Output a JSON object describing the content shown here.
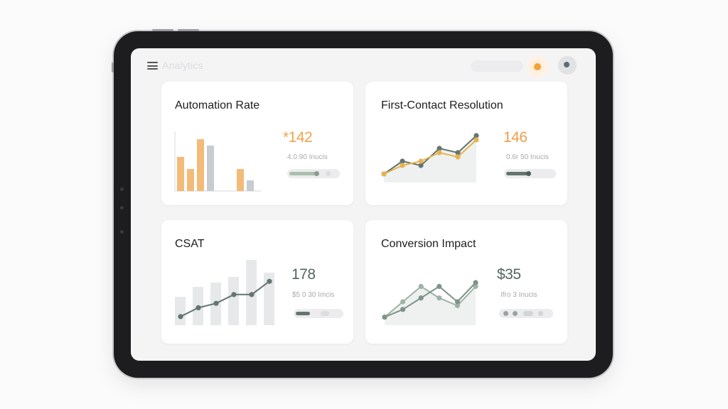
{
  "header": {
    "app_title": "Analytics"
  },
  "colors": {
    "orange": "#f0a44b",
    "gray": "#c8cbcf",
    "slate": "#64756f",
    "sage": "#9fb3a6"
  },
  "cards": [
    {
      "title": "Automation Rate",
      "metric": "*142",
      "metric_color": "#f0a44b",
      "sub": "4.0.90 Inucis"
    },
    {
      "title": "First-Contact Resolution",
      "metric": "146",
      "metric_color": "#ee9f4a",
      "sub": "0.6r 50 Inucis"
    },
    {
      "title": "CSAT",
      "metric": "178",
      "metric_color": "#54665f",
      "sub": "$5 0 30 Imcis"
    },
    {
      "title": "Conversion Impact",
      "metric": "$35",
      "metric_color": "#54665f",
      "sub": "Ifro 3 Inucis"
    }
  ],
  "chart_data": [
    {
      "type": "bar",
      "categories": [
        "1",
        "2",
        "3",
        "4",
        "5",
        "6",
        "7",
        "8"
      ],
      "series": [
        {
          "values": [
            48,
            31,
            73,
            0,
            0,
            0,
            31,
            0
          ]
        },
        {
          "values": [
            0,
            0,
            0,
            64,
            0,
            0,
            0,
            15
          ]
        }
      ]
    },
    {
      "type": "line",
      "x": [
        1,
        2,
        3,
        4,
        5,
        6
      ],
      "series": [
        {
          "values": [
            1,
            4,
            3,
            7,
            6,
            10
          ]
        },
        {
          "values": [
            1,
            3,
            4,
            6,
            5,
            9
          ]
        }
      ]
    },
    {
      "type": "line",
      "x": [
        1,
        2,
        3,
        4,
        5,
        6
      ],
      "series": [
        {
          "values": [
            1,
            3,
            4,
            6,
            6,
            9
          ]
        }
      ]
    },
    {
      "type": "line",
      "x": [
        1,
        2,
        3,
        4,
        5,
        6
      ],
      "series": [
        {
          "values": [
            1,
            5,
            9,
            6,
            4,
            9
          ]
        },
        {
          "values": [
            1,
            3,
            6,
            9,
            5,
            10
          ]
        }
      ]
    }
  ]
}
